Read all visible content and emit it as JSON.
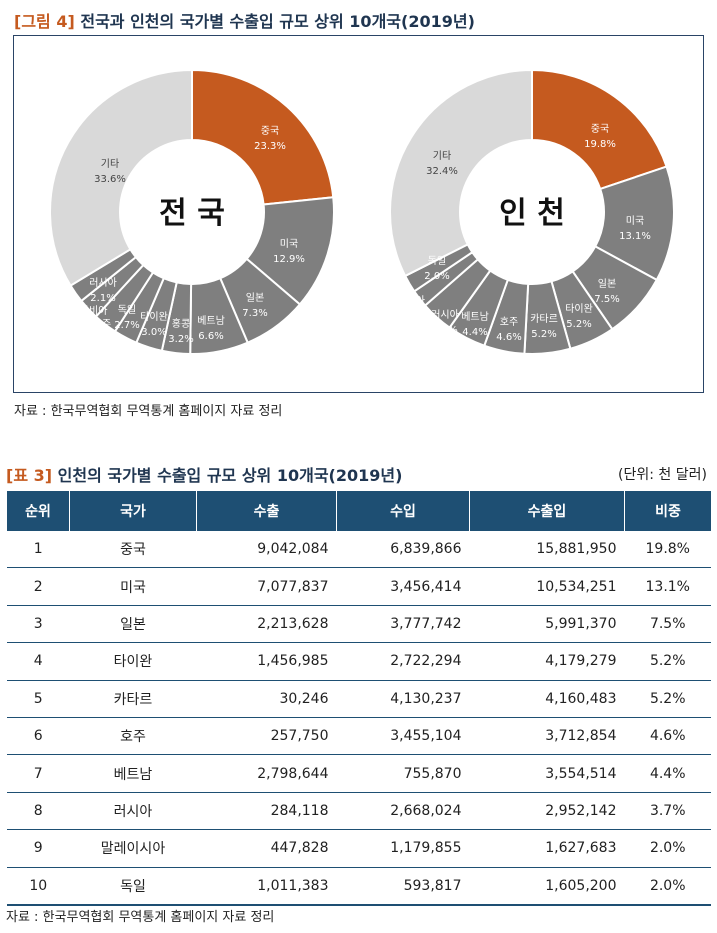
{
  "figure": {
    "tag": "[그림 4]",
    "title": "전국과 인천의 국가별 수출입 규모 상위 10개국(2019년)",
    "source": "자료 : 한국무역협회 무역통계 홈페이지 자료 정리"
  },
  "chart_data": [
    {
      "type": "pie",
      "center_label": "전 국",
      "categories": [
        "중국",
        "미국",
        "일본",
        "베트남",
        "홍콩",
        "타이완",
        "독일",
        "호주",
        "사우디아라비아",
        "러시아",
        "기타"
      ],
      "values": [
        23.3,
        12.9,
        7.3,
        6.6,
        3.2,
        3.0,
        2.7,
        2.7,
        2.4,
        2.1,
        33.6
      ],
      "labels": [
        "23.3%",
        "12.9%",
        "7.3%",
        "6.6%",
        "3.2%",
        "3.0%",
        "2.7%",
        "2.7%",
        "2.4%",
        "2.1%",
        "33.6%"
      ],
      "colors": [
        "#c55a1f",
        "#7f7f7f",
        "#7f7f7f",
        "#7f7f7f",
        "#7f7f7f",
        "#7f7f7f",
        "#7f7f7f",
        "#7f7f7f",
        "#7f7f7f",
        "#7f7f7f",
        "#d9d9d9"
      ]
    },
    {
      "type": "pie",
      "center_label": "인 천",
      "categories": [
        "중국",
        "미국",
        "일본",
        "타이완",
        "카타르",
        "호주",
        "베트남",
        "러시아",
        "말레이시아",
        "독일",
        "기타"
      ],
      "values": [
        19.8,
        13.1,
        7.5,
        5.2,
        5.2,
        4.6,
        4.4,
        3.7,
        2.0,
        2.0,
        32.4
      ],
      "labels": [
        "19.8%",
        "13.1%",
        "7.5%",
        "5.2%",
        "5.2%",
        "4.6%",
        "4.4%",
        "3.7%",
        "2.0%",
        "2.0%",
        "32.4%"
      ],
      "colors": [
        "#c55a1f",
        "#7f7f7f",
        "#7f7f7f",
        "#7f7f7f",
        "#7f7f7f",
        "#7f7f7f",
        "#7f7f7f",
        "#7f7f7f",
        "#7f7f7f",
        "#7f7f7f",
        "#d9d9d9"
      ]
    }
  ],
  "table": {
    "tag": "[표 3]",
    "title": "인천의 국가별 수출입 규모 상위 10개국(2019년)",
    "unit": "(단위: 천 달러)",
    "headers": [
      "순위",
      "국가",
      "수출",
      "수입",
      "수출입",
      "비중"
    ],
    "rows": [
      [
        "1",
        "중국",
        "9,042,084",
        "6,839,866",
        "15,881,950",
        "19.8%"
      ],
      [
        "2",
        "미국",
        "7,077,837",
        "3,456,414",
        "10,534,251",
        "13.1%"
      ],
      [
        "3",
        "일본",
        "2,213,628",
        "3,777,742",
        "5,991,370",
        "7.5%"
      ],
      [
        "4",
        "타이완",
        "1,456,985",
        "2,722,294",
        "4,179,279",
        "5.2%"
      ],
      [
        "5",
        "카타르",
        "30,246",
        "4,130,237",
        "4,160,483",
        "5.2%"
      ],
      [
        "6",
        "호주",
        "257,750",
        "3,455,104",
        "3,712,854",
        "4.6%"
      ],
      [
        "7",
        "베트남",
        "2,798,644",
        "755,870",
        "3,554,514",
        "4.4%"
      ],
      [
        "8",
        "러시아",
        "284,118",
        "2,668,024",
        "2,952,142",
        "3.7%"
      ],
      [
        "9",
        "말레이시아",
        "447,828",
        "1,179,855",
        "1,627,683",
        "2.0%"
      ],
      [
        "10",
        "독일",
        "1,011,383",
        "593,817",
        "1,605,200",
        "2.0%"
      ]
    ],
    "source": "자료 : 한국무역협회 무역통계 홈페이지 자료 정리"
  }
}
